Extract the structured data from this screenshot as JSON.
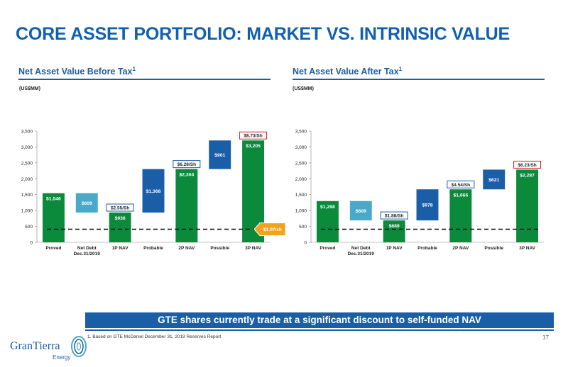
{
  "title": "CORE ASSET PORTFOLIO: MARKET VS. INTRINSIC VALUE",
  "banner": "GTE shares currently trade at a significant discount to self-funded NAV",
  "footnote": "1. Based on GTE McDaniel December 31, 2019 Reserves Report",
  "page_number": "17",
  "logo": {
    "name": "GranTierra",
    "sub": "Energy"
  },
  "colors": {
    "green": "#0b8a3c",
    "teal": "#4aa9c9",
    "blue": "#1a5ea8",
    "orange": "#f4a21c",
    "red": "#d0202f"
  },
  "chart_data": [
    {
      "type": "bar",
      "subtype": "waterfall",
      "title": "Net Asset Value Before Tax",
      "title_sup": "1",
      "unit_label": "(US$MM)",
      "ylim": [
        0,
        3500
      ],
      "y_ticks": [
        "0",
        "500",
        "1,000",
        "1,500",
        "2,000",
        "2,500",
        "3,000",
        "3,500"
      ],
      "categories": [
        "Proved",
        "Net Debt\nDec.31/2019",
        "1P NAV",
        "Probable",
        "2P NAV",
        "Possible",
        "3P NAV"
      ],
      "bars": [
        {
          "label": "$1,546",
          "base": 0,
          "value": 1546,
          "kind": "total"
        },
        {
          "label": "$609",
          "base": 937,
          "value": 609,
          "kind": "decrease"
        },
        {
          "label": "$936",
          "base": 0,
          "value": 936,
          "kind": "total"
        },
        {
          "label": "$1,368",
          "base": 936,
          "value": 1368,
          "kind": "increase"
        },
        {
          "label": "$2,304",
          "base": 0,
          "value": 2304,
          "kind": "total"
        },
        {
          "label": "$901",
          "base": 2304,
          "value": 901,
          "kind": "increase"
        },
        {
          "label": "$3,205",
          "base": 0,
          "value": 3205,
          "kind": "total"
        }
      ],
      "per_share": [
        {
          "index": 2,
          "label": "$2.55/Sh",
          "style": "blue"
        },
        {
          "index": 4,
          "label": "$6.28/Sh",
          "style": "blue"
        },
        {
          "index": 6,
          "label": "$8.73/Sh",
          "style": "red"
        }
      ],
      "market_line": {
        "value": 410,
        "label": "$1.07/sh"
      },
      "grid": false
    },
    {
      "type": "bar",
      "subtype": "waterfall",
      "title": "Net Asset Value After Tax",
      "title_sup": "1",
      "unit_label": "(US$MM)",
      "ylim": [
        0,
        3500
      ],
      "y_ticks": [
        "0",
        "500",
        "1,000",
        "1,500",
        "2,000",
        "2,500",
        "3,000",
        "3,500"
      ],
      "categories": [
        "Proved",
        "Net Debt\nDec.31/2019",
        "1P NAV",
        "Probable",
        "2P NAV",
        "Possible",
        "3P NAV"
      ],
      "bars": [
        {
          "label": "$1,298",
          "base": 0,
          "value": 1298,
          "kind": "total"
        },
        {
          "label": "$609",
          "base": 689,
          "value": 609,
          "kind": "decrease"
        },
        {
          "label": "$689",
          "base": 0,
          "value": 689,
          "kind": "total"
        },
        {
          "label": "$978",
          "base": 689,
          "value": 978,
          "kind": "increase"
        },
        {
          "label": "$1,666",
          "base": 0,
          "value": 1666,
          "kind": "total"
        },
        {
          "label": "$621",
          "base": 1666,
          "value": 621,
          "kind": "increase"
        },
        {
          "label": "$2,287",
          "base": 0,
          "value": 2287,
          "kind": "total"
        }
      ],
      "per_share": [
        {
          "index": 2,
          "label": "$1.88/Sh",
          "style": "blue"
        },
        {
          "index": 4,
          "label": "$4.54/Sh",
          "style": "blue"
        },
        {
          "index": 6,
          "label": "$6.23/Sh",
          "style": "red"
        }
      ],
      "market_line": {
        "value": 410
      },
      "grid": false
    }
  ]
}
